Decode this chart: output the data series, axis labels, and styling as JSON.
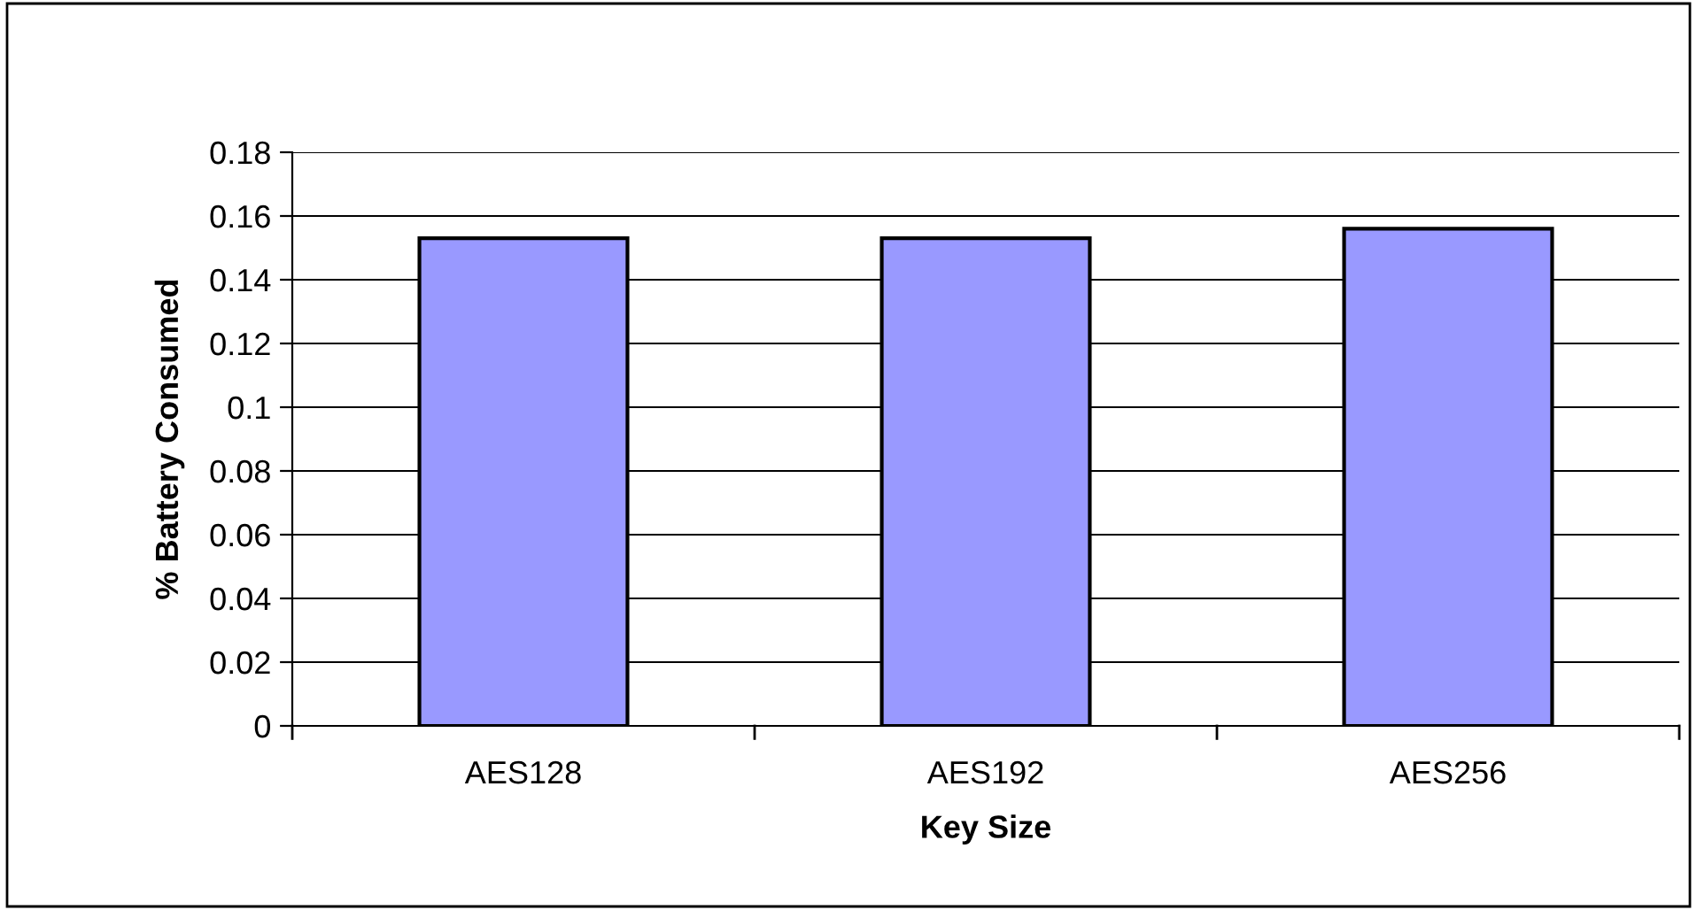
{
  "chart_data": {
    "type": "bar",
    "xlabel": "Key Size",
    "ylabel": "% Battery Consumed",
    "categories": [
      "AES128",
      "AES192",
      "AES256"
    ],
    "values": [
      0.153,
      0.153,
      0.156
    ],
    "color": "#9999ff",
    "ylim": [
      0,
      0.18
    ],
    "yticks": [
      0,
      0.02,
      0.04,
      0.06,
      0.08,
      0.1,
      0.12,
      0.14,
      0.16,
      0.18
    ],
    "grid": "y"
  }
}
